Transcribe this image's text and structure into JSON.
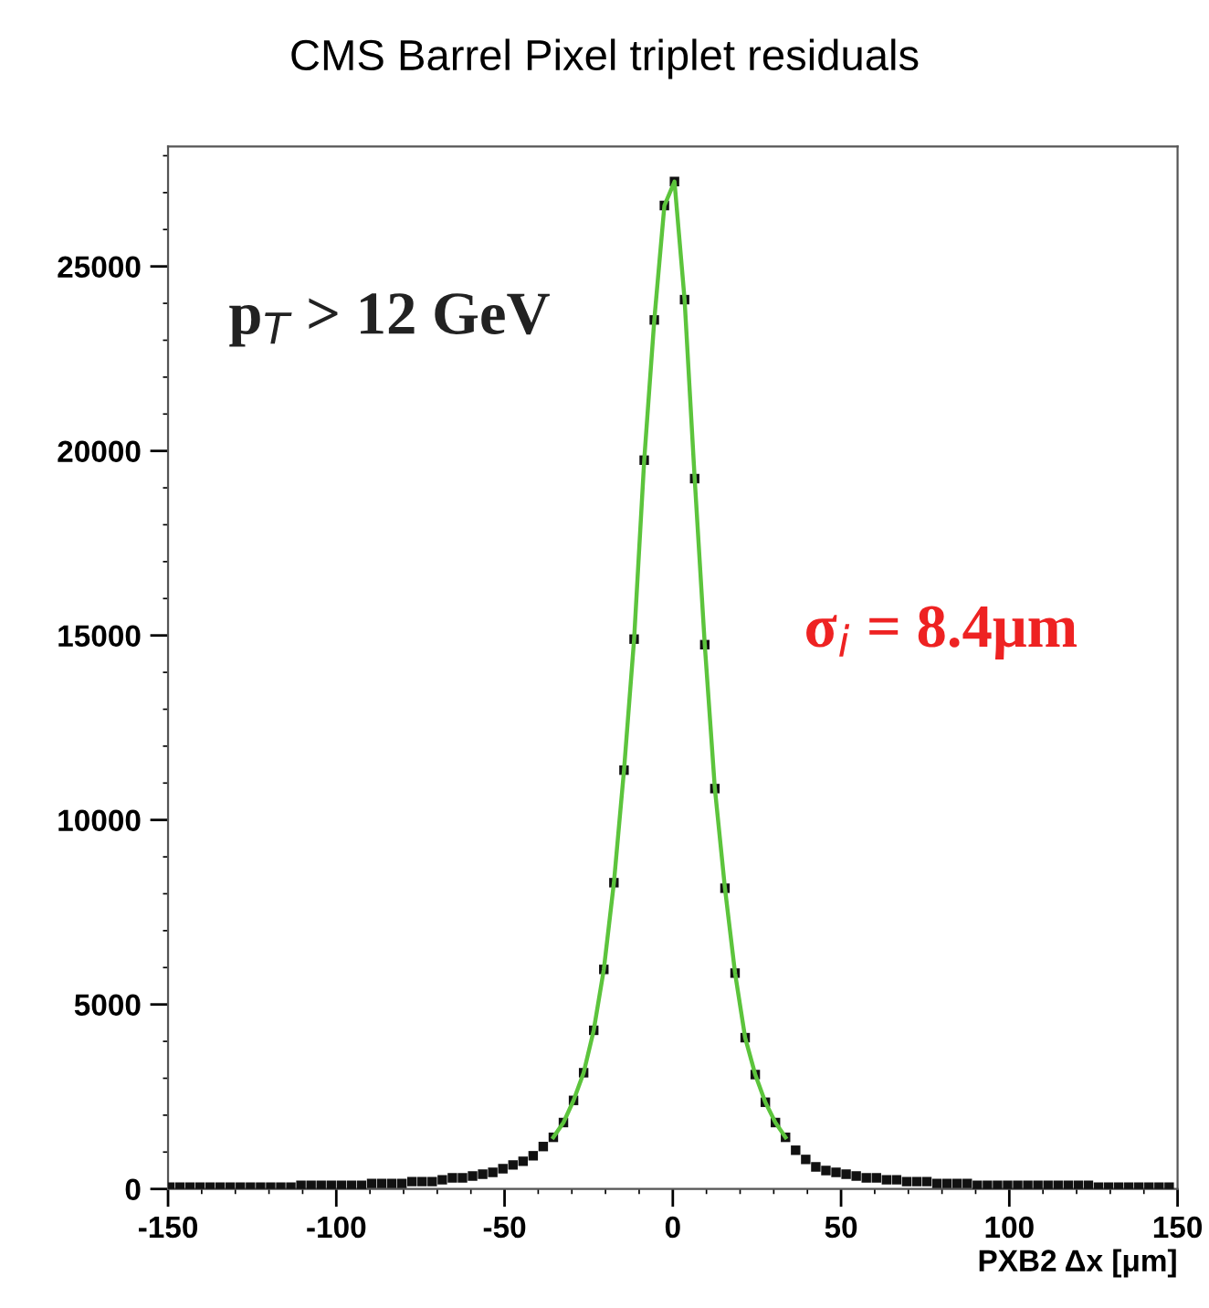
{
  "chart_data": {
    "type": "scatter",
    "title": "CMS Barrel Pixel triplet residuals",
    "xlabel": "PXB2 Δx [μm]",
    "xlim": [
      -150,
      150
    ],
    "xticks": [
      -150,
      -100,
      -50,
      0,
      50,
      100,
      150
    ],
    "ylim": [
      0,
      28250
    ],
    "yticks": [
      0,
      5000,
      10000,
      15000,
      20000,
      25000
    ],
    "grid": false,
    "legend": false,
    "annotations": [
      "p$_{T}$ > 12 GeV",
      "σ$_{i}$ = 8.4μm"
    ],
    "series": [
      {
        "type": "line",
        "color": "#5cc43c",
        "marker": "none",
        "line_style": "solid",
        "x": [
          -35.5,
          -32.5,
          -29.5,
          -26.5,
          -23.5,
          -20.5,
          -17.5,
          -14.5,
          -11.5,
          -8.5,
          -5.5,
          -2.5,
          0.5,
          3.5,
          6.5,
          9.5,
          12.5,
          15.5,
          18.5,
          21.5,
          24.5,
          27.5,
          30.5,
          33.5
        ],
        "values": [
          1400,
          1800,
          2400,
          3150,
          4300,
          5950,
          8300,
          11350,
          14900,
          19750,
          23550,
          26650,
          27300,
          24100,
          19250,
          14750,
          10850,
          8150,
          5850,
          4100,
          3100,
          2350,
          1800,
          1400
        ]
      },
      {
        "color": "#111111",
        "marker": "square",
        "x": [
          -149.5,
          -146.5,
          -143.5,
          -140.5,
          -137.5,
          -134.5,
          -131.5,
          -128.5,
          -125.5,
          -122.5,
          -119.5,
          -116.5,
          -113.5,
          -110.5,
          -107.5,
          -104.5,
          -101.5,
          -98.5,
          -95.5,
          -92.5,
          -89.5,
          -86.5,
          -83.5,
          -80.5,
          -77.5,
          -74.5,
          -71.5,
          -68.5,
          -65.5,
          -62.5,
          -59.5,
          -56.5,
          -53.5,
          -50.5,
          -47.5,
          -44.5,
          -41.5,
          -38.5,
          -35.5,
          -32.5,
          -29.5,
          -26.5,
          -23.5,
          -20.5,
          -17.5,
          -14.5,
          -11.5,
          -8.5,
          -5.5,
          -2.5,
          0.5,
          3.5,
          6.5,
          9.5,
          12.5,
          15.5,
          18.5,
          21.5,
          24.5,
          27.5,
          30.5,
          33.5,
          36.5,
          39.5,
          42.5,
          45.5,
          48.5,
          51.5,
          54.5,
          57.5,
          60.5,
          63.5,
          66.5,
          69.5,
          72.5,
          75.5,
          78.5,
          81.5,
          84.5,
          87.5,
          90.5,
          93.5,
          96.5,
          99.5,
          102.5,
          105.5,
          108.5,
          111.5,
          114.5,
          117.5,
          120.5,
          123.5,
          126.5,
          129.5,
          132.5,
          135.5,
          138.5,
          141.5,
          144.5,
          147.5
        ],
        "values": [
          50,
          50,
          50,
          50,
          50,
          50,
          50,
          50,
          50,
          50,
          50,
          50,
          50,
          100,
          100,
          100,
          100,
          100,
          100,
          100,
          150,
          150,
          150,
          150,
          200,
          200,
          200,
          250,
          300,
          300,
          350,
          400,
          450,
          550,
          650,
          750,
          900,
          1150,
          1400,
          1800,
          2400,
          3150,
          4300,
          5950,
          8300,
          11350,
          14900,
          19750,
          23550,
          26650,
          27300,
          24100,
          19250,
          14750,
          10850,
          8150,
          5850,
          4100,
          3100,
          2350,
          1800,
          1400,
          1050,
          800,
          600,
          500,
          450,
          400,
          350,
          300,
          300,
          250,
          250,
          200,
          200,
          200,
          150,
          150,
          150,
          150,
          100,
          100,
          100,
          100,
          100,
          100,
          100,
          100,
          100,
          100,
          100,
          100,
          50,
          50,
          50,
          50,
          50,
          50,
          50,
          50
        ]
      }
    ]
  }
}
